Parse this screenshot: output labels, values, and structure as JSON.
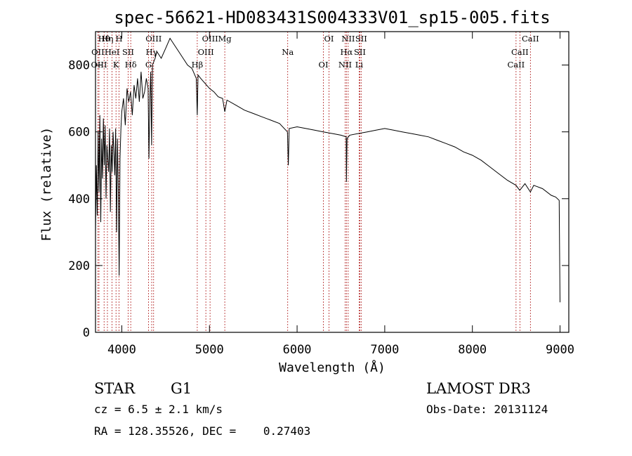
{
  "chart_data": {
    "type": "line",
    "title": "spec-56621-HD083431S004333V01_sp15-005.fits",
    "xlabel": "Wavelength (Å)",
    "ylabel": "Flux (relative)",
    "xlim": [
      3700,
      9100
    ],
    "ylim": [
      0,
      900
    ],
    "xticks": [
      4000,
      5000,
      6000,
      7000,
      8000,
      9000
    ],
    "yticks": [
      0,
      200,
      400,
      600,
      800
    ],
    "line_color": "#000000",
    "marker_color": "#b22222",
    "series": [
      {
        "name": "flux",
        "x": [
          3700,
          3710,
          3720,
          3730,
          3740,
          3750,
          3760,
          3770,
          3780,
          3790,
          3800,
          3810,
          3820,
          3830,
          3840,
          3850,
          3860,
          3870,
          3880,
          3890,
          3900,
          3910,
          3920,
          3930,
          3940,
          3950,
          3960,
          3970,
          3980,
          3990,
          4000,
          4020,
          4040,
          4060,
          4080,
          4100,
          4120,
          4140,
          4160,
          4180,
          4200,
          4220,
          4240,
          4260,
          4280,
          4300,
          4310,
          4320,
          4330,
          4340,
          4350,
          4380,
          4400,
          4450,
          4500,
          4550,
          4600,
          4650,
          4700,
          4750,
          4800,
          4850,
          4861,
          4870,
          4900,
          4950,
          5000,
          5050,
          5100,
          5150,
          5175,
          5200,
          5300,
          5400,
          5500,
          5600,
          5700,
          5800,
          5890,
          5900,
          5910,
          6000,
          6100,
          6200,
          6300,
          6400,
          6500,
          6560,
          6563,
          6570,
          6600,
          6700,
          6800,
          6900,
          7000,
          7100,
          7200,
          7300,
          7400,
          7500,
          7600,
          7700,
          7800,
          7900,
          8000,
          8100,
          8200,
          8300,
          8400,
          8498,
          8540,
          8600,
          8662,
          8700,
          8800,
          8900,
          8950,
          8990,
          9000
        ],
        "values": [
          300,
          500,
          350,
          600,
          420,
          650,
          330,
          580,
          460,
          640,
          500,
          620,
          400,
          560,
          520,
          480,
          610,
          360,
          560,
          480,
          600,
          540,
          470,
          610,
          300,
          580,
          420,
          170,
          520,
          610,
          660,
          700,
          620,
          730,
          690,
          720,
          650,
          740,
          700,
          760,
          690,
          780,
          700,
          720,
          760,
          730,
          520,
          700,
          780,
          560,
          800,
          820,
          840,
          820,
          850,
          880,
          860,
          840,
          820,
          800,
          790,
          760,
          650,
          770,
          760,
          745,
          730,
          720,
          705,
          700,
          660,
          695,
          680,
          665,
          655,
          645,
          635,
          625,
          600,
          500,
          610,
          615,
          610,
          605,
          600,
          595,
          590,
          585,
          450,
          580,
          590,
          595,
          600,
          605,
          610,
          605,
          600,
          595,
          590,
          585,
          575,
          565,
          555,
          540,
          530,
          515,
          495,
          475,
          455,
          440,
          425,
          445,
          420,
          440,
          430,
          410,
          405,
          395,
          90
        ]
      }
    ],
    "spectral_lines": [
      {
        "label": "Hθ",
        "x": 3798
      },
      {
        "label": "OII",
        "x": 3727
      },
      {
        "label": "OIII",
        "x": 3740
      },
      {
        "label": "Hη",
        "x": 3836
      },
      {
        "label": "HeI",
        "x": 3889
      },
      {
        "label": "K",
        "x": 3934
      },
      {
        "label": "H",
        "x": 3969
      },
      {
        "label": "SII",
        "x": 4072
      },
      {
        "label": "Hδ",
        "x": 4102
      },
      {
        "label": "OIII",
        "x": 4363
      },
      {
        "label": "Hγ",
        "x": 4341
      },
      {
        "label": "G",
        "x": 4305
      },
      {
        "label": "OIII",
        "x": 5007
      },
      {
        "label": "OIII",
        "x": 4959
      },
      {
        "label": "Hβ",
        "x": 4861
      },
      {
        "label": "Mg",
        "x": 5175
      },
      {
        "label": "Na",
        "x": 5893
      },
      {
        "label": "OI",
        "x": 6300
      },
      {
        "label": "OI",
        "x": 6364
      },
      {
        "label": "Hα",
        "x": 6563
      },
      {
        "label": "NII",
        "x": 6548
      },
      {
        "label": "NII",
        "x": 6583
      },
      {
        "label": "SII",
        "x": 6716
      },
      {
        "label": "Li",
        "x": 6708
      },
      {
        "label": "SII",
        "x": 6731
      },
      {
        "label": "CaII",
        "x": 8542
      },
      {
        "label": "CaII",
        "x": 8498
      },
      {
        "label": "CaII",
        "x": 8662
      }
    ]
  },
  "info": {
    "class_label": "STAR",
    "subclass": "G1",
    "survey": "LAMOST DR3",
    "cz": "cz = 6.5 ± 2.1 km/s",
    "obs_date": "Obs-Date: 20131124",
    "coords": "RA = 128.35526, DEC =    0.27403"
  }
}
